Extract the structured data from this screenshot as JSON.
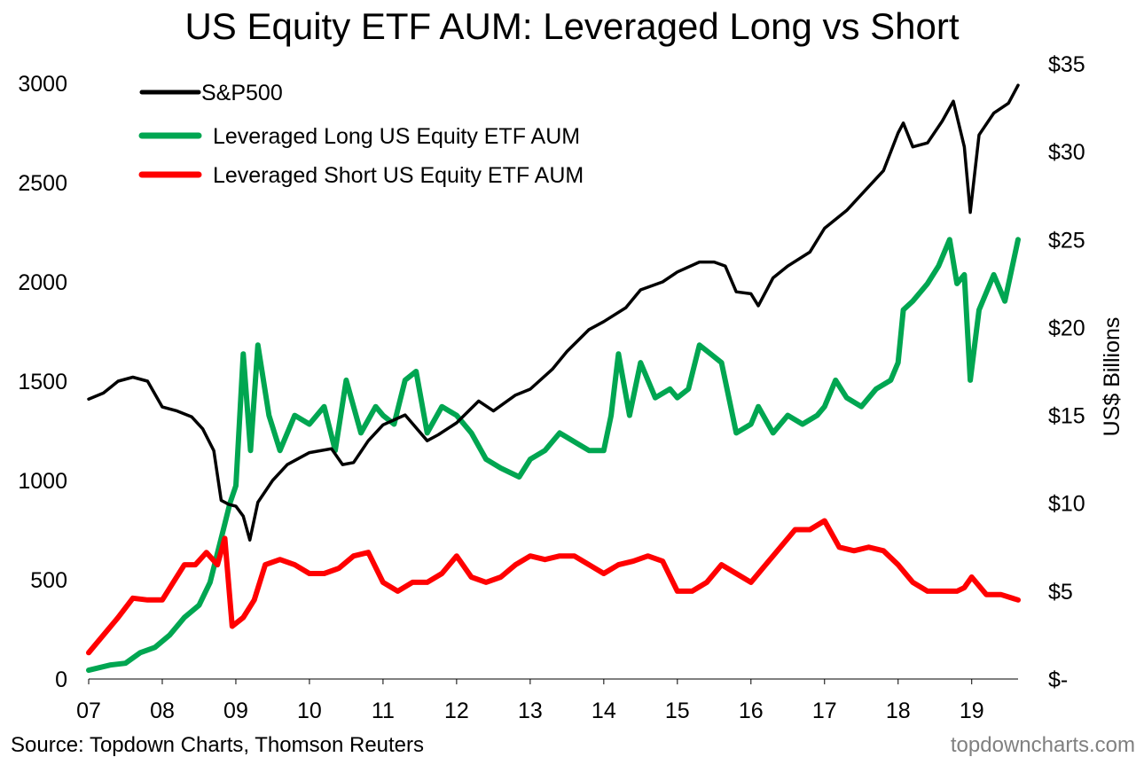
{
  "chart_data": {
    "type": "line",
    "title": "US Equity ETF AUM: Leveraged Long vs Short",
    "xlabel": "",
    "ylabel_left": "",
    "ylabel_right": "US$ Billions",
    "x_ticks": [
      "07",
      "08",
      "09",
      "10",
      "11",
      "12",
      "13",
      "14",
      "15",
      "16",
      "17",
      "18",
      "19"
    ],
    "xlim": [
      2007.0,
      2019.63
    ],
    "ylim_left": [
      0,
      3000
    ],
    "yticks_left": [
      "0",
      "500",
      "1000",
      "1500",
      "2000",
      "2500",
      "3000"
    ],
    "ylim_right": [
      0,
      35
    ],
    "yticks_right": [
      "$-",
      "$5",
      "$10",
      "$15",
      "$20",
      "$25",
      "$30",
      "$35"
    ],
    "grid": false,
    "legend_position": "top-left",
    "series": [
      {
        "name": "S&P500",
        "axis": "left",
        "color": "#000000",
        "x": [
          2007.0,
          2007.2,
          2007.4,
          2007.6,
          2007.8,
          2008.0,
          2008.2,
          2008.4,
          2008.55,
          2008.7,
          2008.8,
          2008.9,
          2009.0,
          2009.1,
          2009.19,
          2009.3,
          2009.5,
          2009.7,
          2010.0,
          2010.3,
          2010.45,
          2010.6,
          2010.8,
          2011.0,
          2011.3,
          2011.6,
          2011.75,
          2012.0,
          2012.3,
          2012.5,
          2012.8,
          2013.0,
          2013.3,
          2013.5,
          2013.8,
          2014.0,
          2014.3,
          2014.5,
          2014.8,
          2015.0,
          2015.3,
          2015.5,
          2015.65,
          2015.8,
          2016.0,
          2016.1,
          2016.3,
          2016.5,
          2016.8,
          2017.0,
          2017.3,
          2017.5,
          2017.8,
          2018.0,
          2018.07,
          2018.2,
          2018.4,
          2018.6,
          2018.75,
          2018.9,
          2018.98,
          2019.1,
          2019.3,
          2019.5,
          2019.63
        ],
        "values": [
          1410,
          1440,
          1500,
          1520,
          1500,
          1370,
          1350,
          1320,
          1260,
          1150,
          900,
          880,
          870,
          820,
          700,
          890,
          1000,
          1080,
          1140,
          1160,
          1080,
          1090,
          1200,
          1280,
          1330,
          1200,
          1230,
          1290,
          1400,
          1350,
          1430,
          1460,
          1560,
          1650,
          1760,
          1800,
          1870,
          1960,
          2000,
          2050,
          2100,
          2100,
          2080,
          1950,
          1940,
          1880,
          2020,
          2080,
          2150,
          2270,
          2360,
          2440,
          2560,
          2750,
          2800,
          2680,
          2700,
          2810,
          2910,
          2680,
          2350,
          2740,
          2850,
          2900,
          2990
        ]
      },
      {
        "name": "Leveraged Long US Equity ETF AUM",
        "axis": "right",
        "color": "#00A651",
        "x": [
          2007.0,
          2007.3,
          2007.5,
          2007.7,
          2007.9,
          2008.1,
          2008.3,
          2008.5,
          2008.65,
          2008.8,
          2008.92,
          2009.0,
          2009.1,
          2009.2,
          2009.3,
          2009.45,
          2009.6,
          2009.8,
          2010.0,
          2010.2,
          2010.35,
          2010.5,
          2010.7,
          2010.9,
          2011.0,
          2011.15,
          2011.3,
          2011.45,
          2011.6,
          2011.8,
          2012.0,
          2012.2,
          2012.4,
          2012.6,
          2012.85,
          2013.0,
          2013.2,
          2013.4,
          2013.6,
          2013.8,
          2014.0,
          2014.1,
          2014.2,
          2014.35,
          2014.5,
          2014.7,
          2014.9,
          2015.0,
          2015.15,
          2015.3,
          2015.45,
          2015.6,
          2015.8,
          2016.0,
          2016.1,
          2016.3,
          2016.5,
          2016.7,
          2016.9,
          2017.0,
          2017.15,
          2017.3,
          2017.5,
          2017.7,
          2017.9,
          2018.0,
          2018.07,
          2018.2,
          2018.4,
          2018.55,
          2018.7,
          2018.8,
          2018.9,
          2018.98,
          2019.1,
          2019.3,
          2019.45,
          2019.63
        ],
        "values": [
          0.5,
          0.8,
          0.9,
          1.5,
          1.8,
          2.5,
          3.5,
          4.2,
          5.5,
          8.0,
          10.0,
          11.0,
          18.5,
          13.0,
          19.0,
          15.0,
          13.0,
          15.0,
          14.5,
          15.5,
          13.0,
          17.0,
          14.0,
          15.5,
          15.0,
          14.5,
          17.0,
          17.5,
          14.0,
          15.5,
          15.0,
          14.0,
          12.5,
          12.0,
          11.5,
          12.5,
          13.0,
          14.0,
          13.5,
          13.0,
          13.0,
          15.0,
          18.5,
          15.0,
          18.0,
          16.0,
          16.5,
          16.0,
          16.5,
          19.0,
          18.5,
          18.0,
          14.0,
          14.5,
          15.5,
          14.0,
          15.0,
          14.5,
          15.0,
          15.5,
          17.0,
          16.0,
          15.5,
          16.5,
          17.0,
          18.0,
          21.0,
          21.5,
          22.5,
          23.5,
          25.0,
          22.5,
          23.0,
          17.0,
          21.0,
          23.0,
          21.5,
          25.0
        ]
      },
      {
        "name": "Leveraged Short US Equity ETF AUM",
        "axis": "right",
        "color": "#FF0000",
        "x": [
          2007.0,
          2007.2,
          2007.4,
          2007.6,
          2007.8,
          2008.0,
          2008.15,
          2008.3,
          2008.45,
          2008.6,
          2008.75,
          2008.85,
          2008.95,
          2009.1,
          2009.25,
          2009.4,
          2009.6,
          2009.8,
          2010.0,
          2010.2,
          2010.4,
          2010.6,
          2010.8,
          2011.0,
          2011.2,
          2011.4,
          2011.6,
          2011.8,
          2012.0,
          2012.2,
          2012.4,
          2012.6,
          2012.8,
          2013.0,
          2013.2,
          2013.4,
          2013.6,
          2013.8,
          2014.0,
          2014.2,
          2014.4,
          2014.6,
          2014.8,
          2015.0,
          2015.2,
          2015.4,
          2015.6,
          2015.8,
          2016.0,
          2016.2,
          2016.4,
          2016.6,
          2016.8,
          2017.0,
          2017.2,
          2017.4,
          2017.6,
          2017.8,
          2018.0,
          2018.2,
          2018.4,
          2018.6,
          2018.8,
          2018.9,
          2019.0,
          2019.2,
          2019.4,
          2019.63
        ],
        "values": [
          1.5,
          2.5,
          3.5,
          4.6,
          4.5,
          4.5,
          5.5,
          6.5,
          6.5,
          7.2,
          6.5,
          8.0,
          3.0,
          3.5,
          4.5,
          6.5,
          6.8,
          6.5,
          6.0,
          6.0,
          6.3,
          7.0,
          7.2,
          5.5,
          5.0,
          5.5,
          5.5,
          6.0,
          7.0,
          5.8,
          5.5,
          5.8,
          6.5,
          7.0,
          6.8,
          7.0,
          7.0,
          6.5,
          6.0,
          6.5,
          6.7,
          7.0,
          6.7,
          5.0,
          5.0,
          5.5,
          6.5,
          6.0,
          5.5,
          6.5,
          7.5,
          8.5,
          8.5,
          9.0,
          7.5,
          7.3,
          7.5,
          7.3,
          6.5,
          5.5,
          5.0,
          5.0,
          5.0,
          5.2,
          5.8,
          4.8,
          4.8,
          4.5
        ]
      }
    ]
  },
  "footer": {
    "source": "Source: Topdown Charts, Thomson Reuters",
    "brand": "topdowncharts.com"
  }
}
